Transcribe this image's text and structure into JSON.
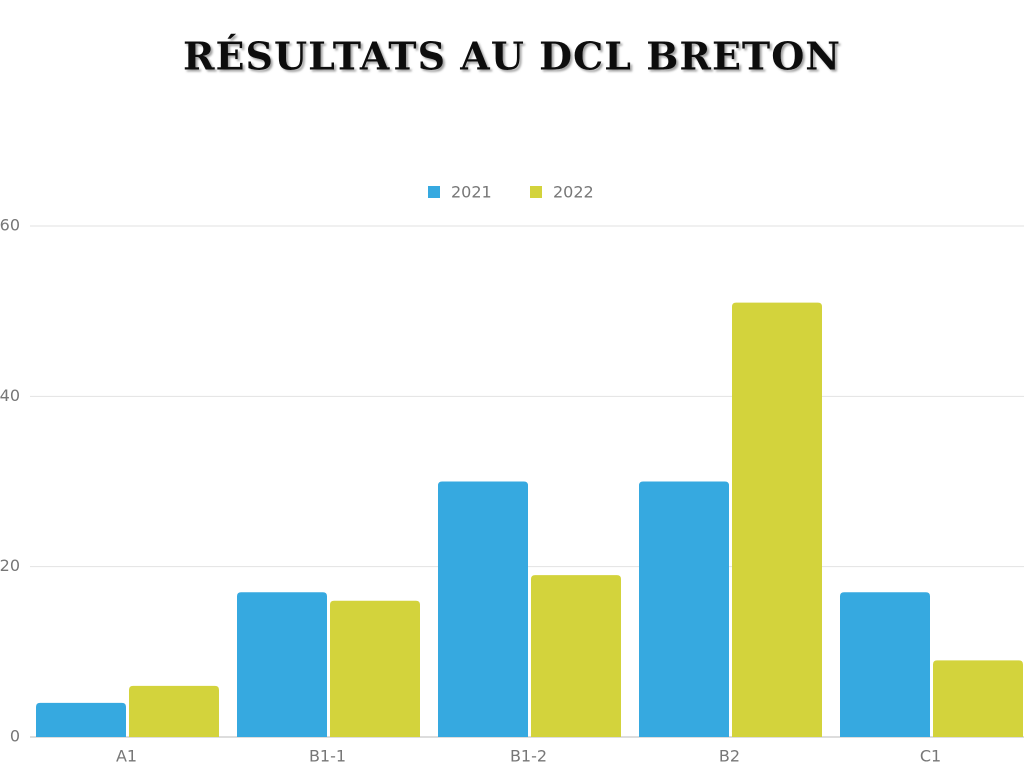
{
  "chart_data": {
    "type": "bar",
    "title": "RÉSULTATS AU DCL BRETON",
    "categories": [
      "A1",
      "B1-1",
      "B1-2",
      "B2",
      "C1"
    ],
    "series": [
      {
        "name": "2021",
        "color": "#36a9e0",
        "values": [
          4,
          17,
          30,
          30,
          17
        ]
      },
      {
        "name": "2022",
        "color": "#d3d33c",
        "values": [
          6,
          16,
          19,
          51,
          9
        ]
      }
    ],
    "ylim": [
      0,
      60
    ],
    "yticks": [
      0,
      20,
      40,
      60
    ],
    "grid": true,
    "legend": "top"
  }
}
